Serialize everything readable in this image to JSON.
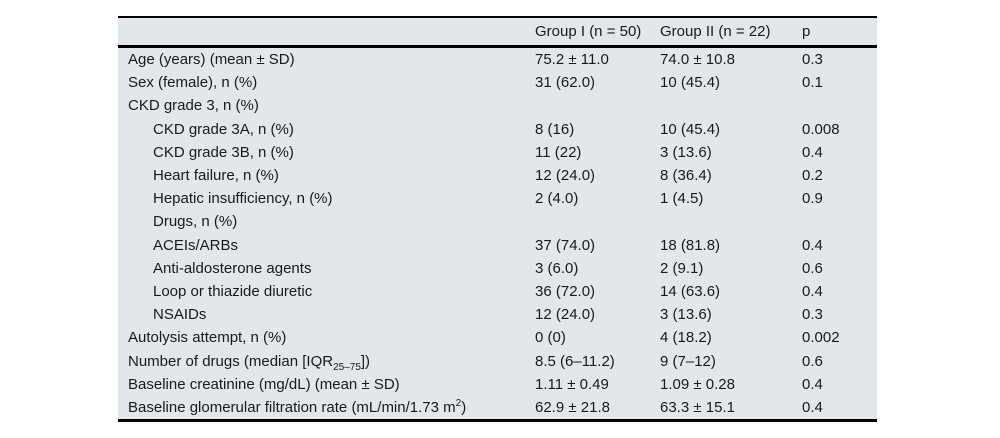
{
  "table": {
    "colors": {
      "panel_bg": "#e3e7e9",
      "rule": "#000000",
      "text": "#1a1a1a",
      "page_bg": "#ffffff"
    },
    "columns": [
      {
        "label": ""
      },
      {
        "label": "Group I (n = 50)"
      },
      {
        "label": "Group II (n = 22)"
      },
      {
        "label": "p"
      }
    ],
    "rows": [
      {
        "label": "Age (years) (mean ± SD)",
        "indent": 0,
        "group1": "75.2 ± 11.0",
        "group2": "74.0 ± 10.8",
        "p": "0.3"
      },
      {
        "label": "Sex (female), n (%)",
        "indent": 0,
        "group1": "31 (62.0)",
        "group2": "10 (45.4)",
        "p": "0.1"
      },
      {
        "label": "CKD grade 3, n (%)",
        "indent": 0,
        "group1": "",
        "group2": "",
        "p": ""
      },
      {
        "label": "CKD grade 3A, n (%)",
        "indent": 1,
        "group1": "8 (16)",
        "group2": "10 (45.4)",
        "p": "0.008"
      },
      {
        "label": "CKD grade 3B, n (%)",
        "indent": 1,
        "group1": "11 (22)",
        "group2": "3 (13.6)",
        "p": "0.4"
      },
      {
        "label": "Heart failure, n (%)",
        "indent": 1,
        "group1": "12 (24.0)",
        "group2": "8 (36.4)",
        "p": "0.2"
      },
      {
        "label": "Hepatic insufficiency, n (%)",
        "indent": 1,
        "group1": "2 (4.0)",
        "group2": "1 (4.5)",
        "p": "0.9"
      },
      {
        "label": "Drugs, n (%)",
        "indent": 1,
        "group1": "",
        "group2": "",
        "p": ""
      },
      {
        "label": "ACEIs/ARBs",
        "indent": 1,
        "group1": "37 (74.0)",
        "group2": "18 (81.8)",
        "p": "0.4"
      },
      {
        "label": "Anti-aldosterone agents",
        "indent": 1,
        "group1": "3 (6.0)",
        "group2": "2 (9.1)",
        "p": "0.6"
      },
      {
        "label": "Loop or thiazide diuretic",
        "indent": 1,
        "group1": "36 (72.0)",
        "group2": "14 (63.6)",
        "p": "0.4"
      },
      {
        "label": "NSAIDs",
        "indent": 1,
        "group1": "12 (24.0)",
        "group2": "3 (13.6)",
        "p": "0.3"
      },
      {
        "label": "Autolysis attempt, n (%)",
        "indent": 0,
        "group1": "0 (0)",
        "group2": "4 (18.2)",
        "p": "0.002"
      },
      {
        "label": "Number of drugs (median [IQR~25–75~])",
        "indent": 0,
        "group1": "8.5 (6–11.2)",
        "group2": "9 (7–12)",
        "p": "0.6"
      },
      {
        "label": "Baseline creatinine (mg/dL) (mean ± SD)",
        "indent": 0,
        "group1": "1.11 ± 0.49",
        "group2": "1.09 ± 0.28",
        "p": "0.4"
      },
      {
        "label": "Baseline glomerular filtration rate (mL/min/1.73 m^2^)",
        "indent": 0,
        "group1": "62.9 ± 21.8",
        "group2": "63.3 ± 15.1",
        "p": "0.4"
      }
    ]
  }
}
